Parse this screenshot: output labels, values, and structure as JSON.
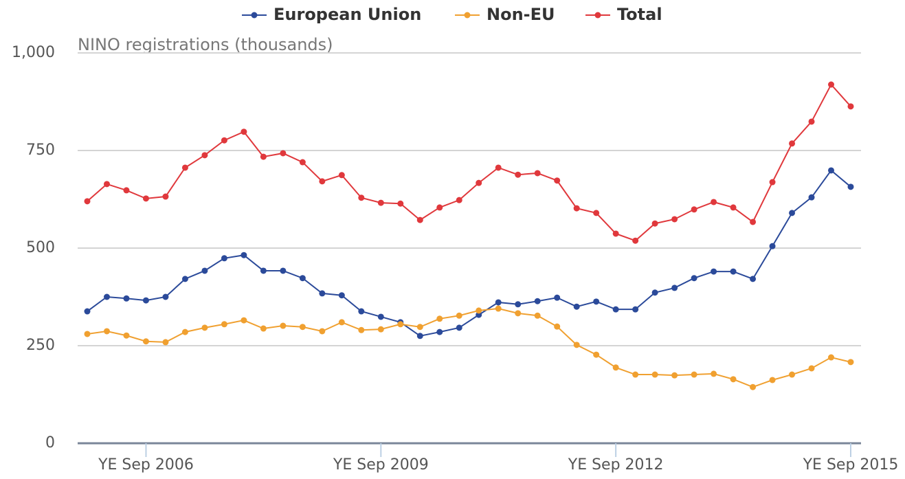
{
  "chart_data": {
    "type": "line",
    "y_label": "NINO registrations (thousands)",
    "categories": [
      null,
      null,
      null,
      "YE Sep 2006",
      null,
      null,
      null,
      null,
      null,
      null,
      null,
      null,
      null,
      null,
      null,
      "YE Sep 2009",
      null,
      null,
      null,
      null,
      null,
      null,
      null,
      null,
      null,
      null,
      null,
      "YE Sep 2012",
      null,
      null,
      null,
      null,
      null,
      null,
      null,
      null,
      null,
      null,
      null,
      "YE Sep 2015"
    ],
    "ylim": [
      0,
      1000
    ],
    "yticks": [
      0,
      250,
      500,
      750,
      {
        "value": 1000,
        "label": "1,000"
      }
    ],
    "grid": true,
    "legend": "top",
    "series": [
      {
        "name": "European Union",
        "color": "#2b4a9a",
        "values": [
          338,
          375,
          371,
          366,
          375,
          421,
          442,
          474,
          482,
          442,
          442,
          423,
          384,
          379,
          338,
          324,
          310,
          275,
          285,
          296,
          329,
          361,
          356,
          364,
          373,
          350,
          363,
          343,
          343,
          386,
          398,
          423,
          440,
          440,
          421,
          505,
          590,
          630,
          699,
          657
        ]
      },
      {
        "name": "Non-EU",
        "color": "#f0a030",
        "values": [
          280,
          287,
          276,
          261,
          259,
          285,
          296,
          305,
          315,
          294,
          301,
          298,
          287,
          310,
          290,
          292,
          305,
          298,
          319,
          327,
          340,
          345,
          333,
          327,
          299,
          252,
          227,
          194,
          176,
          176,
          174,
          176,
          178,
          164,
          144,
          162,
          176,
          192,
          220,
          208
        ]
      },
      {
        "name": "Total",
        "color": "#e0383c",
        "values": [
          620,
          664,
          648,
          627,
          632,
          706,
          738,
          776,
          798,
          734,
          743,
          720,
          671,
          687,
          629,
          616,
          614,
          572,
          604,
          623,
          667,
          706,
          688,
          692,
          673,
          602,
          590,
          537,
          519,
          563,
          574,
          599,
          618,
          604,
          567,
          669,
          768,
          824,
          919,
          863
        ]
      }
    ]
  }
}
